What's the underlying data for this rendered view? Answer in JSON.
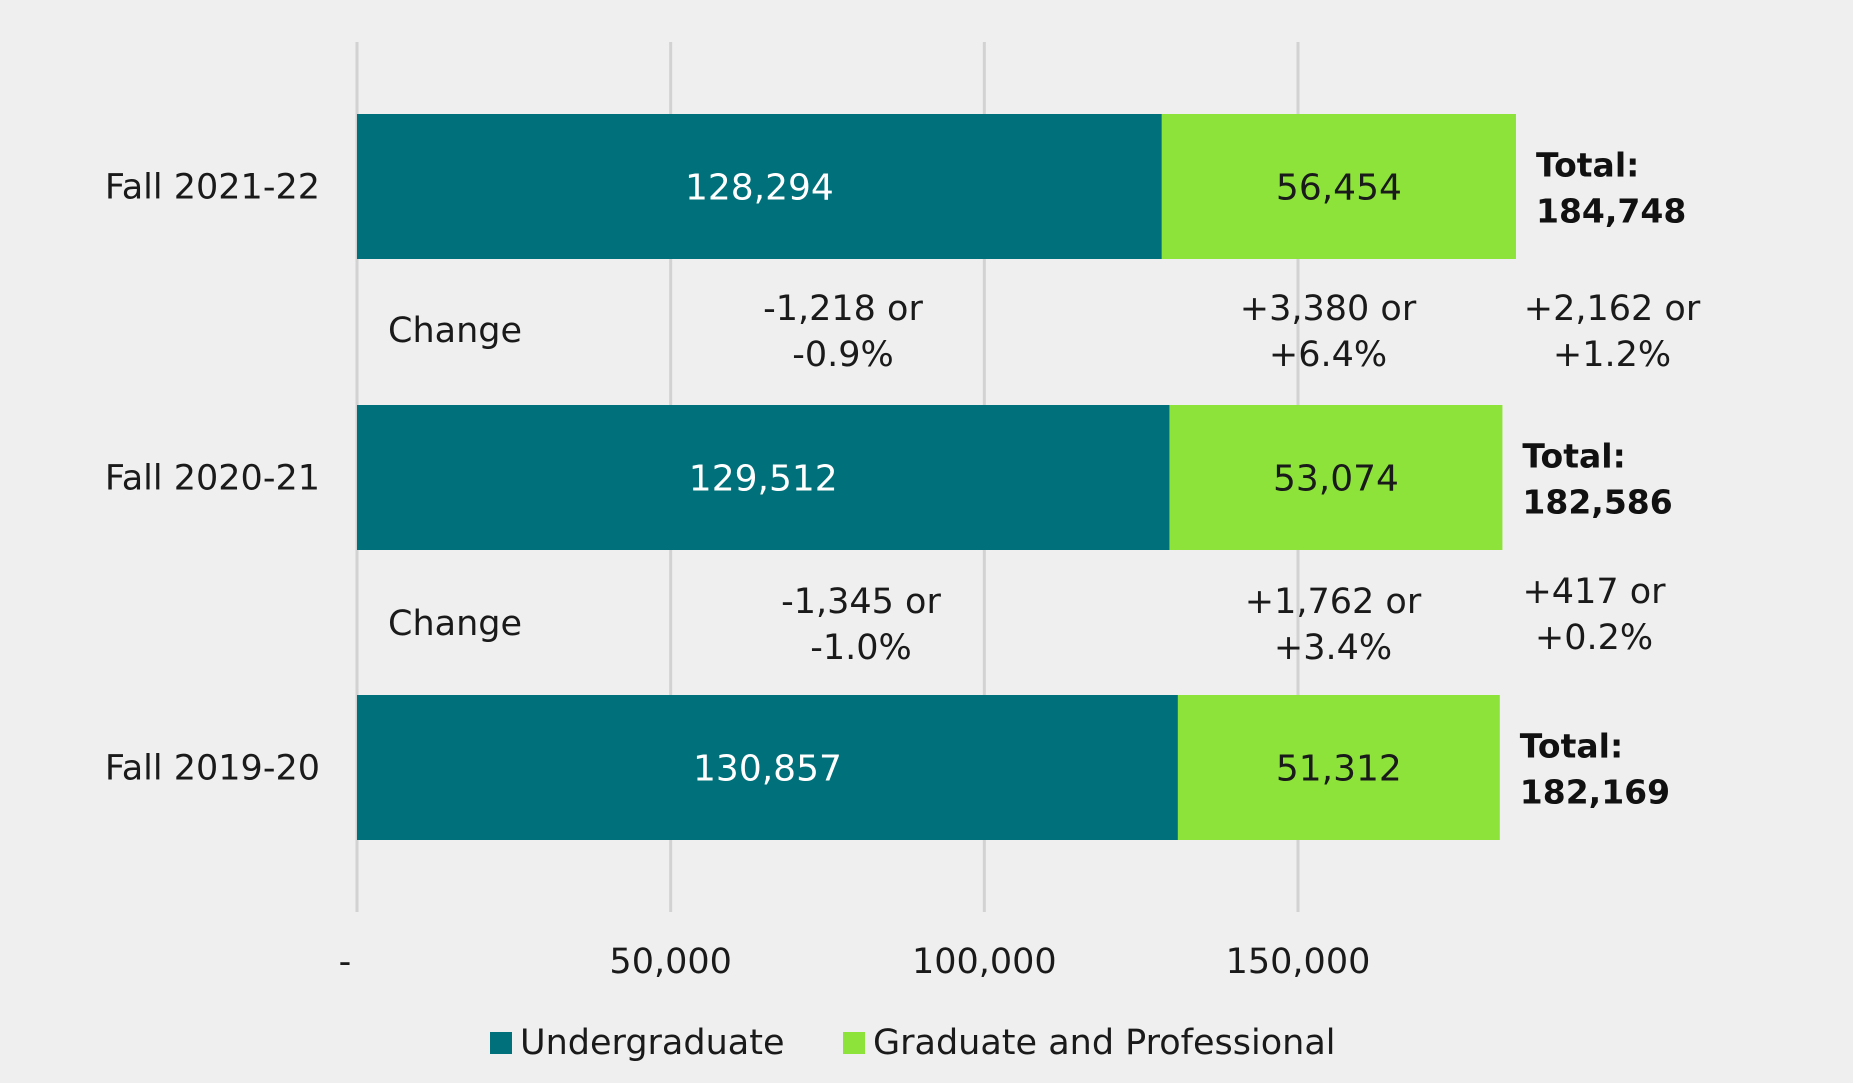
{
  "chart_data": {
    "type": "bar",
    "orientation": "horizontal",
    "stacked": true,
    "categories": [
      "Fall 2021-22",
      "Fall 2020-21",
      "Fall 2019-20"
    ],
    "series": [
      {
        "name": "Undergraduate",
        "color": "#00707a",
        "label_color": "#ffffff",
        "values": [
          128294,
          129512,
          130857
        ],
        "value_labels": [
          "128,294",
          "129,512",
          "130,857"
        ]
      },
      {
        "name": "Graduate and Professional",
        "color": "#8ee33a",
        "label_color": "#1a1a1a",
        "values": [
          56454,
          53074,
          51312
        ],
        "value_labels": [
          "56,454",
          "53,074",
          "51,312"
        ]
      }
    ],
    "totals": [
      {
        "label": "Total:",
        "value": "184,748"
      },
      {
        "label": "Total:",
        "value": "182,586"
      },
      {
        "label": "Total:",
        "value": "182,169"
      }
    ],
    "changes": [
      {
        "label": "Change",
        "undergraduate": [
          "-1,218 or",
          "-0.9%"
        ],
        "graduate": [
          "+3,380 or",
          "+6.4%"
        ],
        "total": [
          "+2,162 or",
          "+1.2%"
        ]
      },
      {
        "label": "Change",
        "undergraduate": [
          "-1,345 or",
          "-1.0%"
        ],
        "graduate": [
          "+1,762 or",
          "+3.4%"
        ],
        "total": [
          "+417 or",
          "+0.2%"
        ]
      }
    ],
    "x_ticks": [
      {
        "value": 0,
        "label": "-"
      },
      {
        "value": 50000,
        "label": "50,000"
      },
      {
        "value": 100000,
        "label": "100,000"
      },
      {
        "value": 150000,
        "label": "150,000"
      }
    ],
    "xlim": [
      0,
      200000
    ],
    "grid": true,
    "legend_position": "bottom"
  }
}
